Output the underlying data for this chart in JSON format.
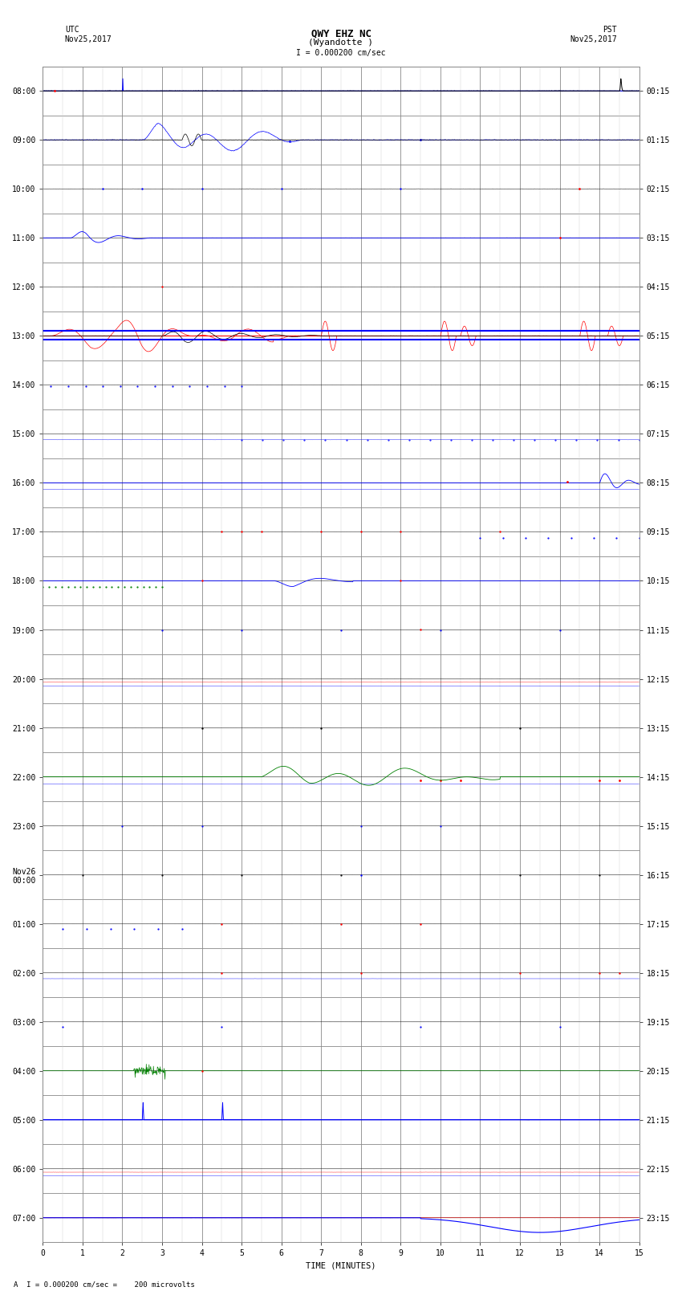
{
  "title_line1": "QWY EHZ NC",
  "title_line2": "(Wyandotte )",
  "scale_label": "I = 0.000200 cm/sec",
  "utc_label": "UTC\nNov25,2017",
  "pst_label": "PST\nNov25,2017",
  "xlabel": "TIME (MINUTES)",
  "footer_label": "A  I = 0.000200 cm/sec =    200 microvolts",
  "left_times_utc": [
    "08:00",
    "09:00",
    "10:00",
    "11:00",
    "12:00",
    "13:00",
    "14:00",
    "15:00",
    "16:00",
    "17:00",
    "18:00",
    "19:00",
    "20:00",
    "21:00",
    "22:00",
    "23:00",
    "Nov26\n00:00",
    "01:00",
    "02:00",
    "03:00",
    "04:00",
    "05:00",
    "06:00",
    "07:00"
  ],
  "right_times_pst": [
    "00:15",
    "01:15",
    "02:15",
    "03:15",
    "04:15",
    "05:15",
    "06:15",
    "07:15",
    "08:15",
    "09:15",
    "10:15",
    "11:15",
    "12:15",
    "13:15",
    "14:15",
    "15:15",
    "16:15",
    "17:15",
    "18:15",
    "19:15",
    "20:15",
    "21:15",
    "22:15",
    "23:15"
  ],
  "num_rows": 24,
  "x_ticks": [
    0,
    1,
    2,
    3,
    4,
    5,
    6,
    7,
    8,
    9,
    10,
    11,
    12,
    13,
    14,
    15
  ],
  "bg_color": "#ffffff",
  "grid_major_color": "#888888",
  "grid_minor_color": "#cccccc",
  "title_fontsize": 9,
  "label_fontsize": 7.5,
  "tick_fontsize": 7
}
